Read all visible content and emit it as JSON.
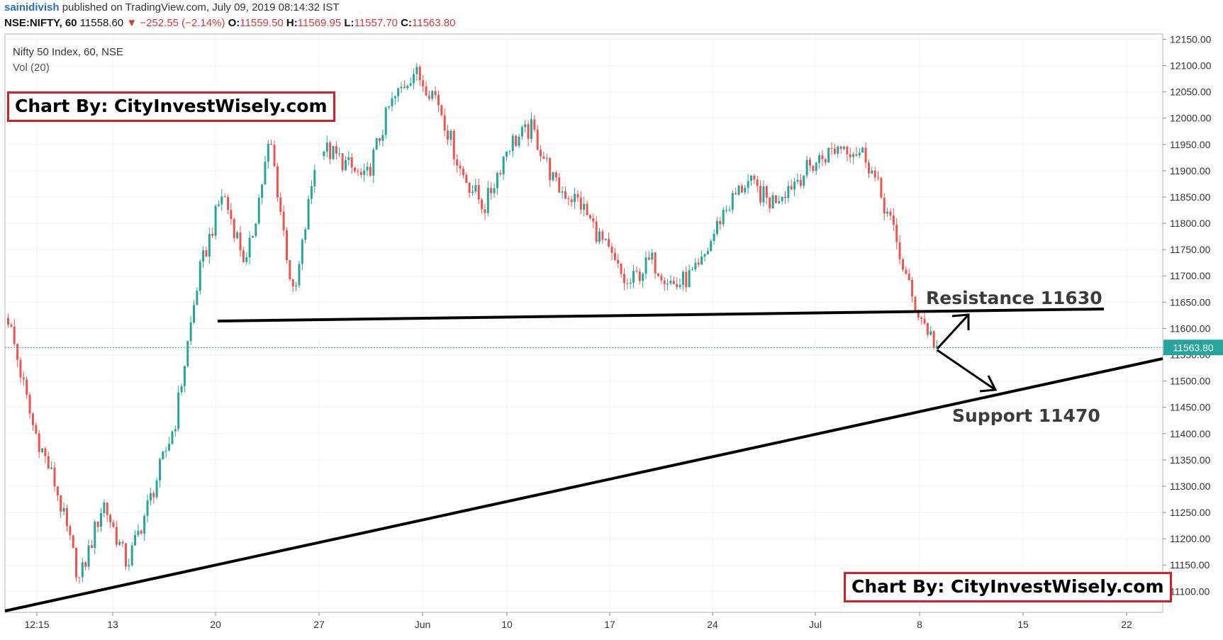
{
  "header": {
    "author": "sainidivish",
    "published_text": "published on TradingView.com, July 09, 2019 08:14:32 IST",
    "symbol": "NSE:NIFTY, 60",
    "last_price": "11558.60",
    "change": "−252.55 (−2.14%)",
    "o_label": "O:",
    "o_value": "11559.50",
    "h_label": "H:",
    "h_value": "11569.95",
    "l_label": "L:",
    "l_value": "11557.70",
    "c_label": "C:",
    "c_value": "11563.80"
  },
  "legend": {
    "title": "Nifty 50 Index, 60, NSE",
    "volume": "Vol (20)"
  },
  "watermarks": [
    "Chart By: CityInvestWisely.com",
    "Chart By: CityInvestWisely.com"
  ],
  "colors": {
    "up": "#26a69a",
    "down": "#ef5350",
    "trendline": "#000000",
    "price_line": "#26a69a",
    "price_label_bg": "#26a69a",
    "watermark_border": "#d0212a",
    "grid": "#eef1f5"
  },
  "chart_data": {
    "type": "candlestick",
    "y_range": [
      11060,
      12160
    ],
    "y_ticks": [
      "12150.00",
      "12100.00",
      "12050.00",
      "12000.00",
      "11950.00",
      "11900.00",
      "11850.00",
      "11800.00",
      "11750.00",
      "11700.00",
      "11650.00",
      "11600.00",
      "11550.00",
      "11500.00",
      "11450.00",
      "11400.00",
      "11350.00",
      "11300.00",
      "11250.00",
      "11200.00",
      "11150.00",
      "11100.00"
    ],
    "x_ticks": [
      "12:15",
      "13",
      "20",
      "27",
      "Jun",
      "10",
      "17",
      "24",
      "Jul",
      "8",
      "15",
      "22"
    ],
    "current_price_label": "11563.80",
    "current_price": 11563.8,
    "series": [
      {
        "x": "12:15",
        "y": 11620
      },
      {
        "x": "13",
        "y": 11420
      },
      {
        "x": "13",
        "y": 11300
      },
      {
        "x": "13",
        "y": 11120
      },
      {
        "x": "13",
        "y": 11270
      },
      {
        "x": "13",
        "y": 11150
      },
      {
        "x": "13",
        "y": 11280
      },
      {
        "x": "13",
        "y": 11420
      },
      {
        "x": "20",
        "y": 11700
      },
      {
        "x": "20",
        "y": 11860
      },
      {
        "x": "20",
        "y": 11720
      },
      {
        "x": "20",
        "y": 11960
      },
      {
        "x": "20",
        "y": 11650
      },
      {
        "x": "27",
        "y": 11950
      },
      {
        "x": "27",
        "y": 11920
      },
      {
        "x": "27",
        "y": 11880
      },
      {
        "x": "27",
        "y": 12020
      },
      {
        "x": "Jun",
        "y": 12090
      },
      {
        "x": "Jun",
        "y": 12040
      },
      {
        "x": "Jun",
        "y": 11900
      },
      {
        "x": "Jun",
        "y": 11830
      },
      {
        "x": "10",
        "y": 11950
      },
      {
        "x": "10",
        "y": 11980
      },
      {
        "x": "10",
        "y": 11870
      },
      {
        "x": "10",
        "y": 11840
      },
      {
        "x": "17",
        "y": 11760
      },
      {
        "x": "17",
        "y": 11680
      },
      {
        "x": "17",
        "y": 11730
      },
      {
        "x": "17",
        "y": 11680
      },
      {
        "x": "24",
        "y": 11710
      },
      {
        "x": "24",
        "y": 11820
      },
      {
        "x": "24",
        "y": 11880
      },
      {
        "x": "24",
        "y": 11840
      },
      {
        "x": "Jul",
        "y": 11880
      },
      {
        "x": "Jul",
        "y": 11920
      },
      {
        "x": "Jul",
        "y": 11950
      },
      {
        "x": "Jul",
        "y": 11930
      },
      {
        "x": "8",
        "y": 11810
      },
      {
        "x": "8",
        "y": 11650
      },
      {
        "x": "8",
        "y": 11563.8
      }
    ],
    "annotations": [
      {
        "text": "Resistance 11630",
        "value": 11630
      },
      {
        "text": "Support 11470",
        "value": 11470
      }
    ]
  }
}
